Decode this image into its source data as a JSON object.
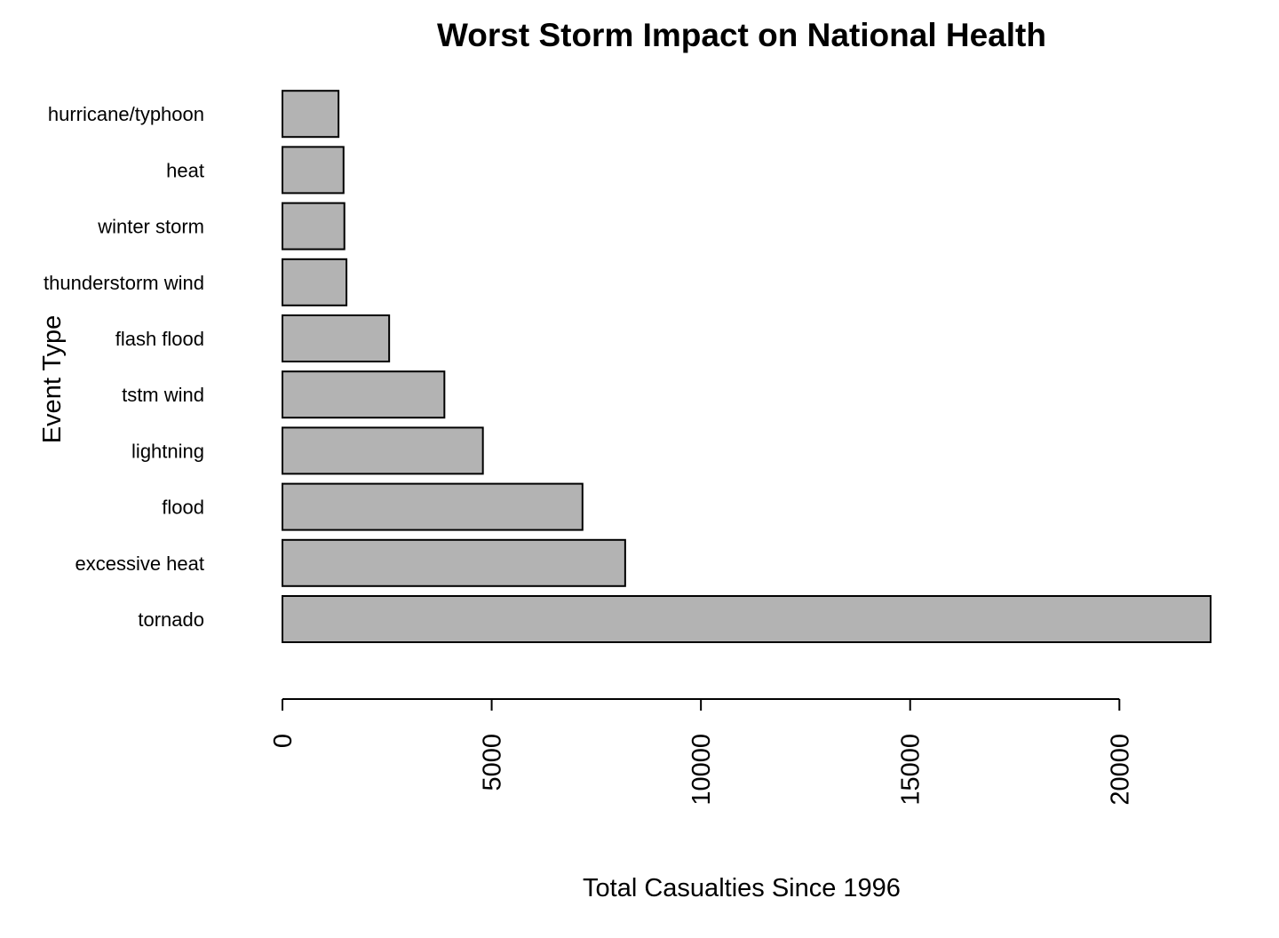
{
  "chart_data": {
    "type": "bar",
    "orientation": "horizontal",
    "title": "Worst Storm Impact on National Health",
    "x_label": "Total Casualties Since 1996",
    "y_label": "Event Type",
    "categories": [
      "tornado",
      "excessive heat",
      "flood",
      "lightning",
      "tstm wind",
      "flash flood",
      "thunderstorm wind",
      "winter storm",
      "heat",
      "hurricane/typhoon"
    ],
    "values": [
      22180,
      8190,
      7170,
      4790,
      3870,
      2550,
      1530,
      1480,
      1460,
      1340
    ],
    "color": "#b3b3b3",
    "xlim": [
      0,
      22180
    ],
    "xticks": [
      0,
      5000,
      10000,
      15000,
      20000
    ]
  }
}
